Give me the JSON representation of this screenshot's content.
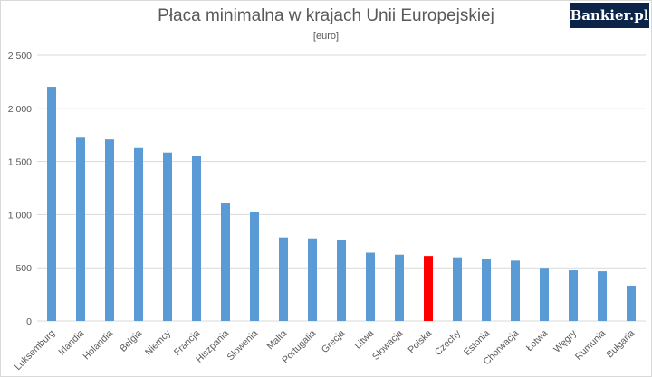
{
  "chart_data": {
    "type": "bar",
    "title": "Płaca minimalna w krajach Unii Europejskiej",
    "subtitle": "[euro]",
    "xlabel": "",
    "ylabel": "",
    "ylim": [
      0,
      2500
    ],
    "yticks": [
      0,
      500,
      1000,
      1500,
      2000,
      2500
    ],
    "ytick_labels": [
      "0",
      "500",
      "1 000",
      "1 500",
      "2 000",
      "2 500"
    ],
    "grid": true,
    "categories": [
      "Luksemburg",
      "Irlandia",
      "Holandia",
      "Belgia",
      "Niemcy",
      "Francja",
      "Hiszpania",
      "Słowenia",
      "Malta",
      "Portugalia",
      "Grecja",
      "Litwa",
      "Słowacja",
      "Polska",
      "Czechy",
      "Estonia",
      "Chorwacja",
      "Łotwa",
      "Węgry",
      "Rumunia",
      "Bułgaria"
    ],
    "values": [
      2202,
      1724,
      1708,
      1626,
      1584,
      1555,
      1108,
      1024,
      785,
      776,
      758,
      642,
      623,
      611,
      598,
      584,
      567,
      500,
      476,
      467,
      332
    ],
    "colors": {
      "default": "#5b9bd5",
      "highlight": "#ff0000",
      "grid": "#d9d9d9",
      "axis": "#d9d9d9"
    },
    "highlight_category": "Polska"
  },
  "logo": {
    "text": "Bankier.pl"
  }
}
